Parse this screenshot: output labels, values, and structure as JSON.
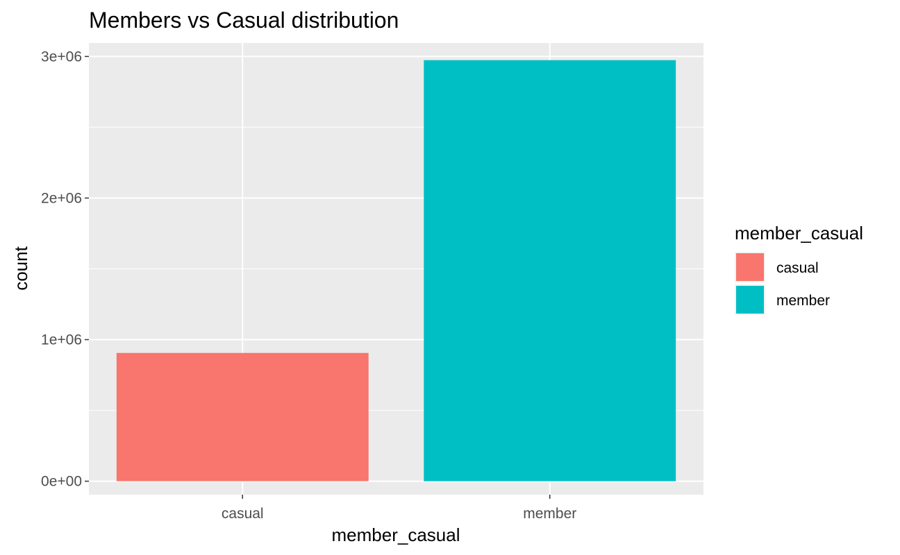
{
  "chart_data": {
    "type": "bar",
    "title": "Members vs Casual distribution",
    "xlabel": "member_casual",
    "ylabel": "count",
    "categories": [
      "casual",
      "member"
    ],
    "values": [
      905954,
      2973868
    ],
    "colors": [
      "#F8766D",
      "#00BFC4"
    ],
    "ylim": [
      -95000,
      3095000
    ],
    "yticks": [
      0,
      1000000,
      2000000,
      3000000
    ],
    "ytick_labels": [
      "0e+00",
      "1e+06",
      "2e+06",
      "3e+06"
    ],
    "grid": true,
    "panel_background": "#EBEBEB",
    "legend": {
      "title": "member_casual",
      "placement": "right",
      "entries": [
        {
          "label": "casual",
          "color": "#F8766D"
        },
        {
          "label": "member",
          "color": "#00BFC4"
        }
      ]
    }
  }
}
